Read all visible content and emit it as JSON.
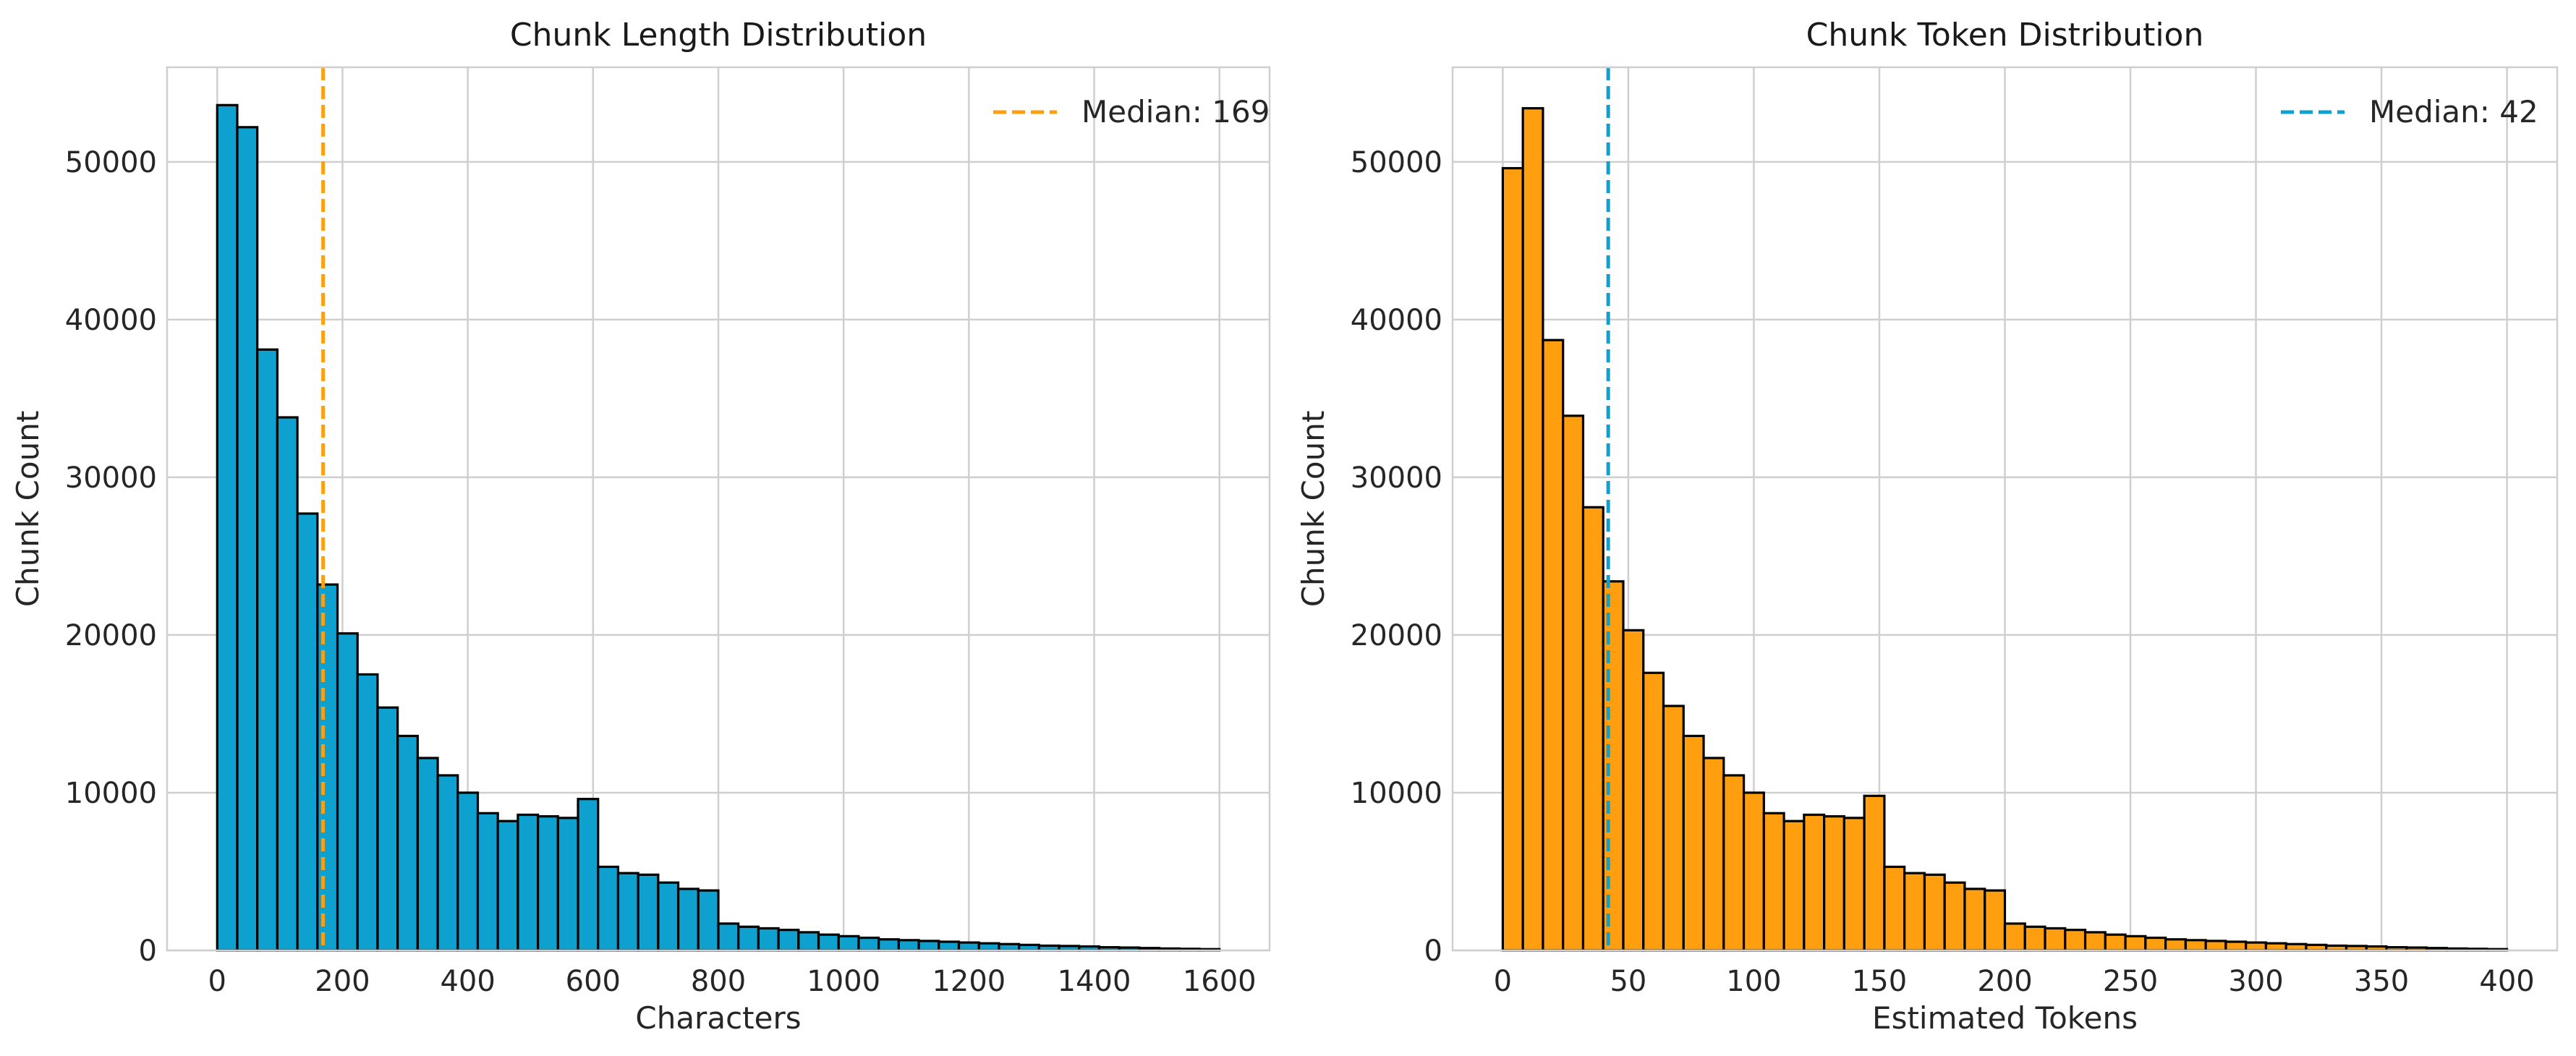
{
  "chart_data": [
    {
      "type": "bar",
      "title": "Chunk Length Distribution",
      "xlabel": "Characters",
      "ylabel": "Chunk Count",
      "bar_color": "#0ea0cf",
      "median_color": "#ff9f0f",
      "median_value": 169,
      "median_label": "Median: 169",
      "legend_position": "top-right",
      "grid": true,
      "xlim": [
        -80,
        1680
      ],
      "ylim": [
        0,
        56000
      ],
      "xticks": [
        0,
        200,
        400,
        600,
        800,
        1000,
        1200,
        1400,
        1600
      ],
      "yticks": [
        0,
        10000,
        20000,
        30000,
        40000,
        50000
      ],
      "bin_start": 0,
      "bin_width": 32,
      "values": [
        53600,
        52200,
        38100,
        33800,
        27700,
        23200,
        20100,
        17500,
        15400,
        13600,
        12200,
        11100,
        10000,
        8700,
        8200,
        8600,
        8500,
        8400,
        9600,
        5300,
        4900,
        4800,
        4300,
        3900,
        3800,
        1700,
        1500,
        1400,
        1300,
        1150,
        1000,
        900,
        800,
        700,
        650,
        600,
        550,
        500,
        450,
        400,
        350,
        300,
        280,
        250,
        200,
        180,
        150,
        120,
        100,
        80
      ]
    },
    {
      "type": "bar",
      "title": "Chunk Token Distribution",
      "xlabel": "Estimated Tokens",
      "ylabel": "Chunk Count",
      "bar_color": "#ff9f0f",
      "median_color": "#0ea0cf",
      "median_value": 42,
      "median_label": "Median: 42",
      "legend_position": "top-right",
      "grid": true,
      "xlim": [
        -20,
        420
      ],
      "ylim": [
        0,
        56000
      ],
      "xticks": [
        0,
        50,
        100,
        150,
        200,
        250,
        300,
        350,
        400
      ],
      "yticks": [
        0,
        10000,
        20000,
        30000,
        40000,
        50000
      ],
      "bin_start": 0,
      "bin_width": 8,
      "values": [
        49600,
        53400,
        38700,
        33900,
        28100,
        23400,
        20300,
        17600,
        15500,
        13600,
        12200,
        11100,
        10000,
        8700,
        8200,
        8600,
        8500,
        8400,
        9800,
        5300,
        4900,
        4800,
        4300,
        3900,
        3800,
        1700,
        1500,
        1400,
        1300,
        1150,
        1000,
        900,
        800,
        700,
        650,
        600,
        550,
        500,
        450,
        400,
        350,
        300,
        280,
        250,
        200,
        180,
        150,
        120,
        100,
        80
      ]
    }
  ]
}
